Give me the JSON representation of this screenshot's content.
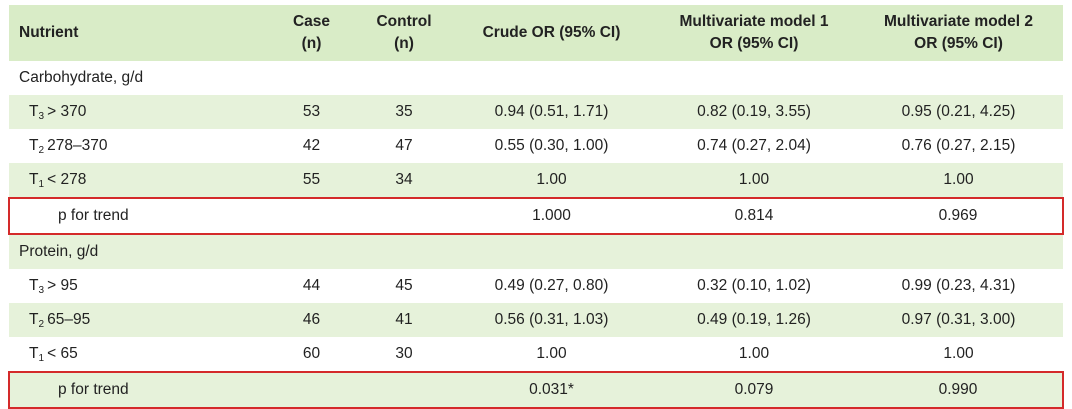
{
  "table": {
    "header": [
      [
        "Nutrient"
      ],
      [
        "Case",
        "(n)"
      ],
      [
        "Control",
        "(n)"
      ],
      [
        "Crude OR (95% CI)"
      ],
      [
        "Multivariate model 1",
        "OR (95% CI)"
      ],
      [
        "Multivariate model 2",
        "OR (95% CI)"
      ]
    ],
    "sections": [
      {
        "title": "Carbohydrate, g/d",
        "rows": [
          {
            "label": {
              "main": "T",
              "sub": "3",
              "text": "> 370"
            },
            "cells": [
              "53",
              "35",
              "0.94 (0.51, 1.71)",
              "0.82 (0.19, 3.55)",
              "0.95 (0.21, 4.25)"
            ]
          },
          {
            "label": {
              "main": "T",
              "sub": "2",
              "text": "278–370"
            },
            "cells": [
              "42",
              "47",
              "0.55 (0.30, 1.00)",
              "0.74 (0.27, 2.04)",
              "0.76 (0.27, 2.15)"
            ]
          },
          {
            "label": {
              "main": "T",
              "sub": "1",
              "text": "< 278"
            },
            "cells": [
              "55",
              "34",
              "1.00",
              "1.00",
              "1.00"
            ]
          },
          {
            "label": "p for trend",
            "cells": [
              null,
              null,
              "1.000",
              "0.814",
              "0.969"
            ]
          }
        ]
      },
      {
        "title": "Protein, g/d",
        "rows": [
          {
            "label": {
              "main": "T",
              "sub": "3",
              "text": "> 95"
            },
            "cells": [
              "44",
              "45",
              "0.49 (0.27, 0.80)",
              "0.32 (0.10, 1.02)",
              "0.99 (0.23, 4.31)"
            ]
          },
          {
            "label": {
              "main": "T",
              "sub": "2",
              "text": "65–95"
            },
            "cells": [
              "46",
              "41",
              "0.56 (0.31, 1.03)",
              "0.49 (0.19, 1.26)",
              "0.97 (0.31, 3.00)"
            ]
          },
          {
            "label": {
              "main": "T",
              "sub": "1",
              "text": "< 65"
            },
            "cells": [
              "60",
              "30",
              "1.00",
              "1.00",
              "1.00"
            ]
          },
          {
            "label": "p for trend",
            "cells": [
              null,
              null,
              "0.031*",
              "0.079",
              "0.990"
            ]
          }
        ]
      }
    ]
  }
}
